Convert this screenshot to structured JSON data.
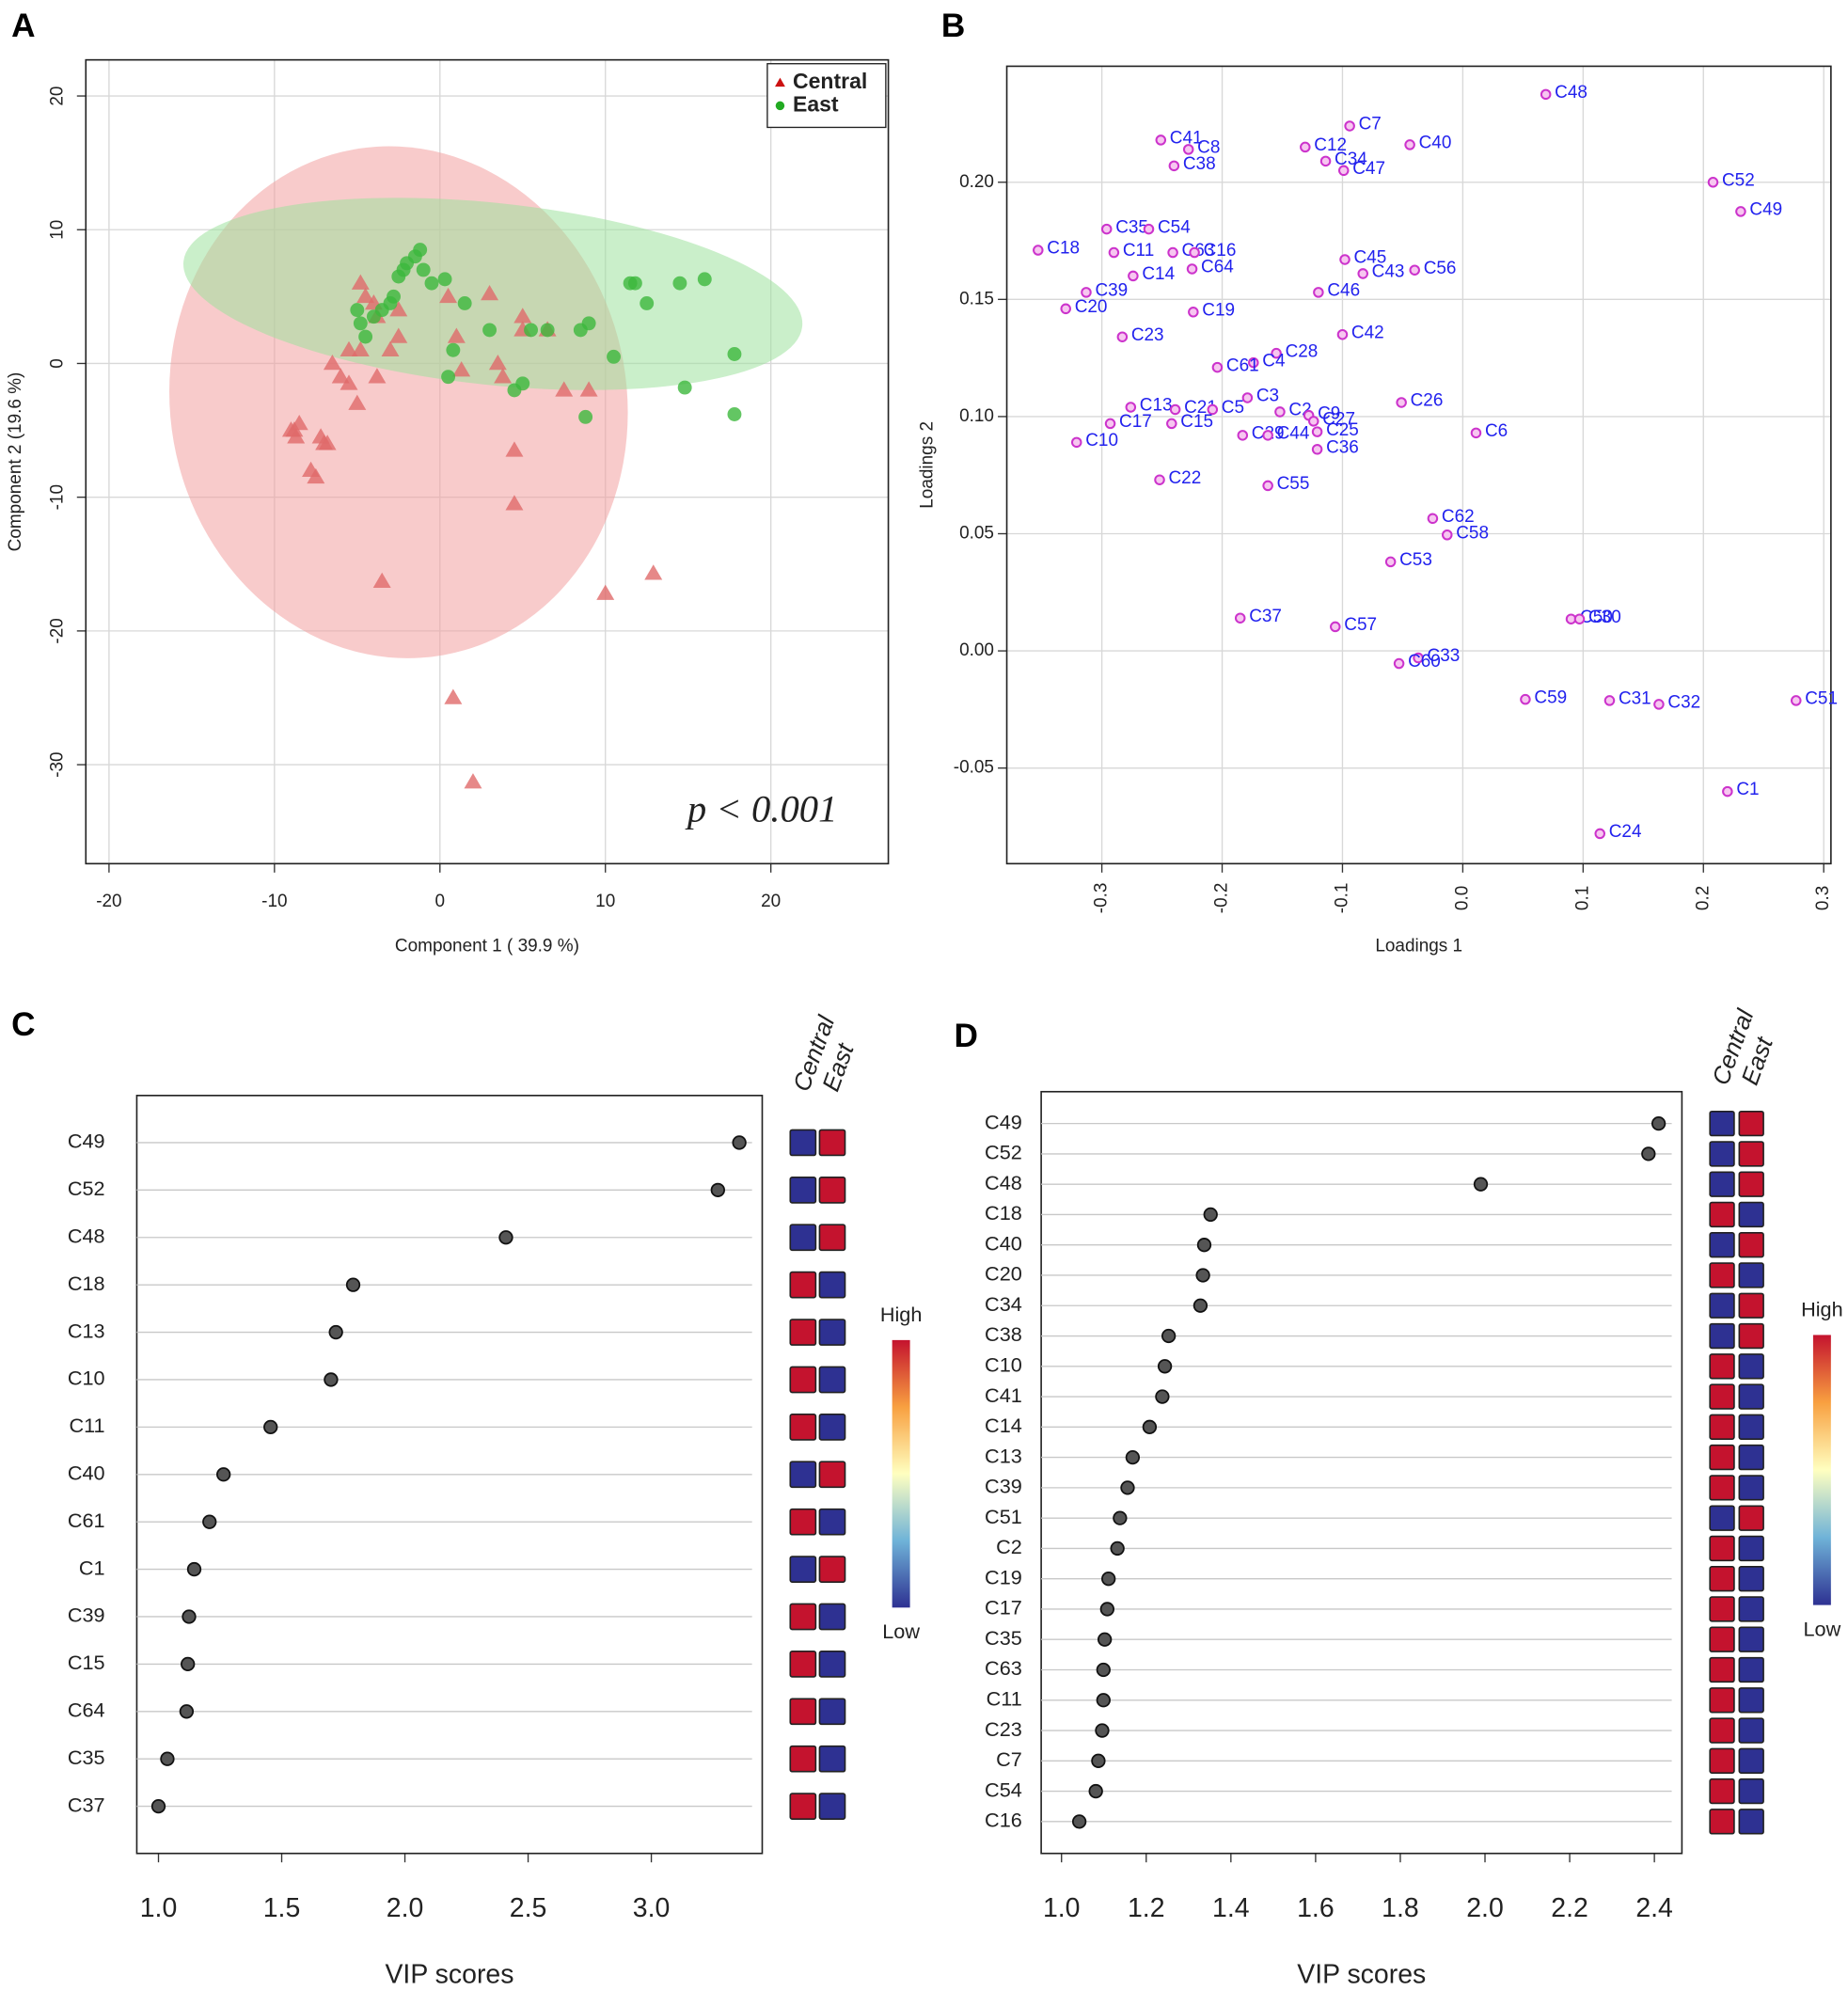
{
  "chart_data": [
    {
      "type": "scatter",
      "label": "A",
      "xlabel": "Component 1 ( 39.9 %)",
      "ylabel": "Component 2 (19.6 %)",
      "annotation": "p < 0.001",
      "xlim": [
        -21.4,
        27.1
      ],
      "ylim": [
        -37.4,
        22.7
      ],
      "xticks": [
        -20,
        -10,
        0,
        10,
        20
      ],
      "yticks": [
        -30,
        -20,
        -10,
        0,
        10,
        20
      ],
      "grid": true,
      "legend": "upper right",
      "series": [
        {
          "name": "Central",
          "color": "#e06a6a",
          "marker": "triangle",
          "x": [
            -8.8,
            -8.5,
            -8.7,
            -9,
            -7.2,
            -7,
            -7.5,
            -7.8,
            -6,
            -5.5,
            -5,
            -6.5,
            -5.5,
            -4.8,
            -4.5,
            -4.8,
            -4,
            -3.8,
            -3.8,
            -3,
            -3.5,
            -2.5,
            -2.5,
            0.5,
            0.8,
            1,
            1.3,
            2,
            3,
            3.5,
            3.8,
            5,
            5,
            4.5,
            4.5,
            6.5,
            7.5,
            9,
            10,
            12.9,
            -6.8
          ],
          "values": [
            -5,
            -4.5,
            -5.5,
            -5,
            -5.5,
            -6,
            -8.5,
            -8,
            -1,
            -1.5,
            -3,
            0,
            1,
            1,
            5,
            6,
            4.5,
            3.5,
            -1,
            1,
            -16.3,
            4,
            2,
            5,
            -25,
            2,
            -0.5,
            -31.3,
            5.2,
            0,
            -1,
            3.5,
            2.5,
            -6.5,
            -10.5,
            2.5,
            -2,
            -2,
            -17.2,
            -15.7,
            -6
          ],
          "ellipse": {
            "cx": -2.5,
            "cy": -2.9,
            "rx": 13.8,
            "ry": 19.2,
            "angle": -10,
            "color": "#f2a0a0"
          }
        },
        {
          "name": "East",
          "color": "#3cb83c",
          "marker": "circle",
          "x": [
            -5,
            -4.8,
            -4.5,
            -4,
            -3,
            -2.8,
            -2.5,
            -2.2,
            -2,
            -1.5,
            -1.2,
            -1,
            -0.5,
            0.3,
            0.5,
            0.8,
            1.5,
            3,
            4.5,
            5,
            5.5,
            6.5,
            8.5,
            9,
            8.8,
            10.5,
            11.5,
            11.8,
            12.5,
            14.5,
            14.8,
            16,
            17.8,
            17.8,
            -3.5
          ],
          "values": [
            4,
            3,
            2,
            3.5,
            4.5,
            5,
            6.5,
            7,
            7.5,
            8,
            8.5,
            7,
            6,
            6.3,
            -1,
            1,
            4.5,
            2.5,
            -2,
            -1.5,
            2.5,
            2.5,
            2.5,
            3,
            -4,
            0.5,
            6,
            6,
            4.5,
            6,
            -1.8,
            6.3,
            0.7,
            -3.8,
            4
          ],
          "ellipse": {
            "cx": 3.2,
            "cy": 5.2,
            "rx": 18.8,
            "ry": 6.8,
            "angle": 6,
            "color": "#9ee29e"
          }
        }
      ]
    },
    {
      "type": "scatter",
      "label": "B",
      "xlabel": "Loadings 1",
      "ylabel": "Loadings 2",
      "color": "#cc33cc",
      "label_color": "#2222ee",
      "xlim": [
        -0.379,
        0.306
      ],
      "ylim": [
        -0.0908,
        0.2495
      ],
      "xticks": [
        -0.3,
        -0.2,
        -0.1,
        {
          "value": 0,
          "label": "0.0"
        },
        0.1,
        0.2,
        0.3
      ],
      "yticks": [
        -0.05,
        {
          "value": 0,
          "label": "0.00"
        },
        0.05,
        {
          "value": 0.1,
          "label": "0.10"
        },
        0.15,
        {
          "value": 0.2,
          "label": "0.20"
        }
      ],
      "grid": true,
      "labels": [
        "C48",
        "C7",
        "C41",
        "C8",
        "C40",
        "C12",
        "C34",
        "C47",
        "C38",
        "C52",
        "C49",
        "C35",
        "C54",
        "C18",
        "C11",
        "C63",
        "C16",
        "C64",
        "C45",
        "C43",
        "C56",
        "C14",
        "C46",
        "C39",
        "C20",
        "C19",
        "C42",
        "C23",
        "C28",
        "C4",
        "C61",
        "C3",
        "C26",
        "C13",
        "C21",
        "C5",
        "C2",
        "C9",
        "C27",
        "C17",
        "C15",
        "C25",
        "C29",
        "C44",
        "C6",
        "C10",
        "C36",
        "C22",
        "C55",
        "C62",
        "C58",
        "C53",
        "C37",
        "C50",
        "C30",
        "C57",
        "C33",
        "C60",
        "C59",
        "C31",
        "C32",
        "C51",
        "C1",
        "C24"
      ],
      "x": [
        0.069,
        -0.094,
        -0.251,
        -0.228,
        -0.044,
        -0.131,
        -0.114,
        -0.099,
        -0.24,
        0.208,
        0.231,
        -0.296,
        -0.261,
        -0.353,
        -0.29,
        -0.241,
        -0.223,
        -0.225,
        -0.098,
        -0.083,
        -0.04,
        -0.274,
        -0.12,
        -0.313,
        -0.33,
        -0.224,
        -0.1,
        -0.283,
        -0.155,
        -0.174,
        -0.204,
        -0.179,
        -0.051,
        -0.276,
        -0.239,
        -0.208,
        -0.152,
        -0.128,
        -0.124,
        -0.293,
        -0.242,
        -0.121,
        -0.183,
        -0.162,
        0.011,
        -0.321,
        -0.121,
        -0.252,
        -0.162,
        -0.025,
        -0.013,
        -0.06,
        -0.185,
        0.09,
        0.097,
        -0.106,
        -0.037,
        -0.053,
        0.052,
        0.122,
        0.163,
        0.277,
        0.22,
        0.114
      ],
      "values": [
        0.2375,
        0.224,
        0.218,
        0.214,
        0.216,
        0.215,
        0.209,
        0.205,
        0.207,
        0.2,
        0.1875,
        0.18,
        0.18,
        0.171,
        0.17,
        0.17,
        0.17,
        0.163,
        0.167,
        0.161,
        0.1625,
        0.16,
        0.153,
        0.153,
        0.146,
        0.1446,
        0.135,
        0.134,
        0.127,
        0.123,
        0.121,
        0.108,
        0.106,
        0.104,
        0.103,
        0.103,
        0.102,
        0.1005,
        0.098,
        0.097,
        0.097,
        0.0935,
        0.092,
        0.092,
        0.093,
        0.089,
        0.086,
        0.073,
        0.0705,
        0.0565,
        0.0495,
        0.038,
        0.014,
        0.0136,
        0.0136,
        0.0103,
        -0.003,
        -0.0054,
        -0.0207,
        -0.0212,
        -0.0228,
        -0.0212,
        -0.06,
        -0.078
      ]
    },
    {
      "type": "dot",
      "label": "C",
      "xlabel": "VIP scores",
      "color": "#555555",
      "xlim": [
        0.912,
        3.45
      ],
      "xticks": [
        {
          "value": 1,
          "label": "1.0"
        },
        1.5,
        {
          "value": 2,
          "label": "2.0"
        },
        2.5,
        {
          "value": 3,
          "label": "3.0"
        }
      ],
      "categories": [
        "C49",
        "C52",
        "C48",
        "C18",
        "C13",
        "C10",
        "C11",
        "C40",
        "C61",
        "C1",
        "C39",
        "C15",
        "C64",
        "C35",
        "C37"
      ],
      "values": [
        3.357,
        3.27,
        2.41,
        1.79,
        1.72,
        1.7,
        1.455,
        1.264,
        1.207,
        1.145,
        1.124,
        1.119,
        1.114,
        1.036,
        1.0
      ],
      "heatmap": {
        "columns": [
          "Central",
          "East"
        ],
        "high": "High",
        "low": "Low",
        "colorbar": [
          "#2e3192",
          "#6fb3d8",
          "#ffffc0",
          "#f8a040",
          "#c4132e"
        ],
        "cell_colors": [
          [
            "#2e3192",
            "#c4132e"
          ],
          [
            "#2e3192",
            "#c4132e"
          ],
          [
            "#2e3192",
            "#c4132e"
          ],
          [
            "#c4132e",
            "#2e3192"
          ],
          [
            "#c4132e",
            "#2e3192"
          ],
          [
            "#c4132e",
            "#2e3192"
          ],
          [
            "#c4132e",
            "#2e3192"
          ],
          [
            "#2e3192",
            "#c4132e"
          ],
          [
            "#c4132e",
            "#2e3192"
          ],
          [
            "#2e3192",
            "#c4132e"
          ],
          [
            "#c4132e",
            "#2e3192"
          ],
          [
            "#c4132e",
            "#2e3192"
          ],
          [
            "#c4132e",
            "#2e3192"
          ],
          [
            "#c4132e",
            "#2e3192"
          ],
          [
            "#c4132e",
            "#2e3192"
          ]
        ]
      }
    },
    {
      "type": "dot",
      "label": "D",
      "xlabel": "VIP scores",
      "color": "#555555",
      "xlim": [
        0.952,
        2.465
      ],
      "xticks": [
        {
          "value": 1,
          "label": "1.0"
        },
        1.2,
        1.4,
        1.6,
        1.8,
        {
          "value": 2,
          "label": "2.0"
        },
        2.2,
        2.4
      ],
      "categories": [
        "C49",
        "C52",
        "C48",
        "C18",
        "C40",
        "C20",
        "C34",
        "C38",
        "C10",
        "C41",
        "C14",
        "C13",
        "C39",
        "C51",
        "C2",
        "C19",
        "C17",
        "C35",
        "C63",
        "C11",
        "C23",
        "C7",
        "C54",
        "C16"
      ],
      "values": [
        2.41,
        2.386,
        1.99,
        1.352,
        1.337,
        1.334,
        1.328,
        1.253,
        1.244,
        1.238,
        1.208,
        1.168,
        1.156,
        1.138,
        1.132,
        1.111,
        1.108,
        1.102,
        1.099,
        1.099,
        1.096,
        1.087,
        1.081,
        1.042
      ],
      "heatmap": {
        "columns": [
          "Central",
          "East"
        ],
        "high": "High",
        "low": "Low",
        "colorbar": [
          "#2e3192",
          "#6fb3d8",
          "#ffffc0",
          "#f8a040",
          "#c4132e"
        ],
        "cell_colors": [
          [
            "#2e3192",
            "#c4132e"
          ],
          [
            "#2e3192",
            "#c4132e"
          ],
          [
            "#2e3192",
            "#c4132e"
          ],
          [
            "#c4132e",
            "#2e3192"
          ],
          [
            "#2e3192",
            "#c4132e"
          ],
          [
            "#c4132e",
            "#2e3192"
          ],
          [
            "#2e3192",
            "#c4132e"
          ],
          [
            "#2e3192",
            "#c4132e"
          ],
          [
            "#c4132e",
            "#2e3192"
          ],
          [
            "#c4132e",
            "#2e3192"
          ],
          [
            "#c4132e",
            "#2e3192"
          ],
          [
            "#c4132e",
            "#2e3192"
          ],
          [
            "#c4132e",
            "#2e3192"
          ],
          [
            "#2e3192",
            "#c4132e"
          ],
          [
            "#c4132e",
            "#2e3192"
          ],
          [
            "#c4132e",
            "#2e3192"
          ],
          [
            "#c4132e",
            "#2e3192"
          ],
          [
            "#c4132e",
            "#2e3192"
          ],
          [
            "#c4132e",
            "#2e3192"
          ],
          [
            "#c4132e",
            "#2e3192"
          ],
          [
            "#c4132e",
            "#2e3192"
          ],
          [
            "#c4132e",
            "#2e3192"
          ],
          [
            "#c4132e",
            "#2e3192"
          ],
          [
            "#c4132e",
            "#2e3192"
          ]
        ]
      }
    }
  ]
}
